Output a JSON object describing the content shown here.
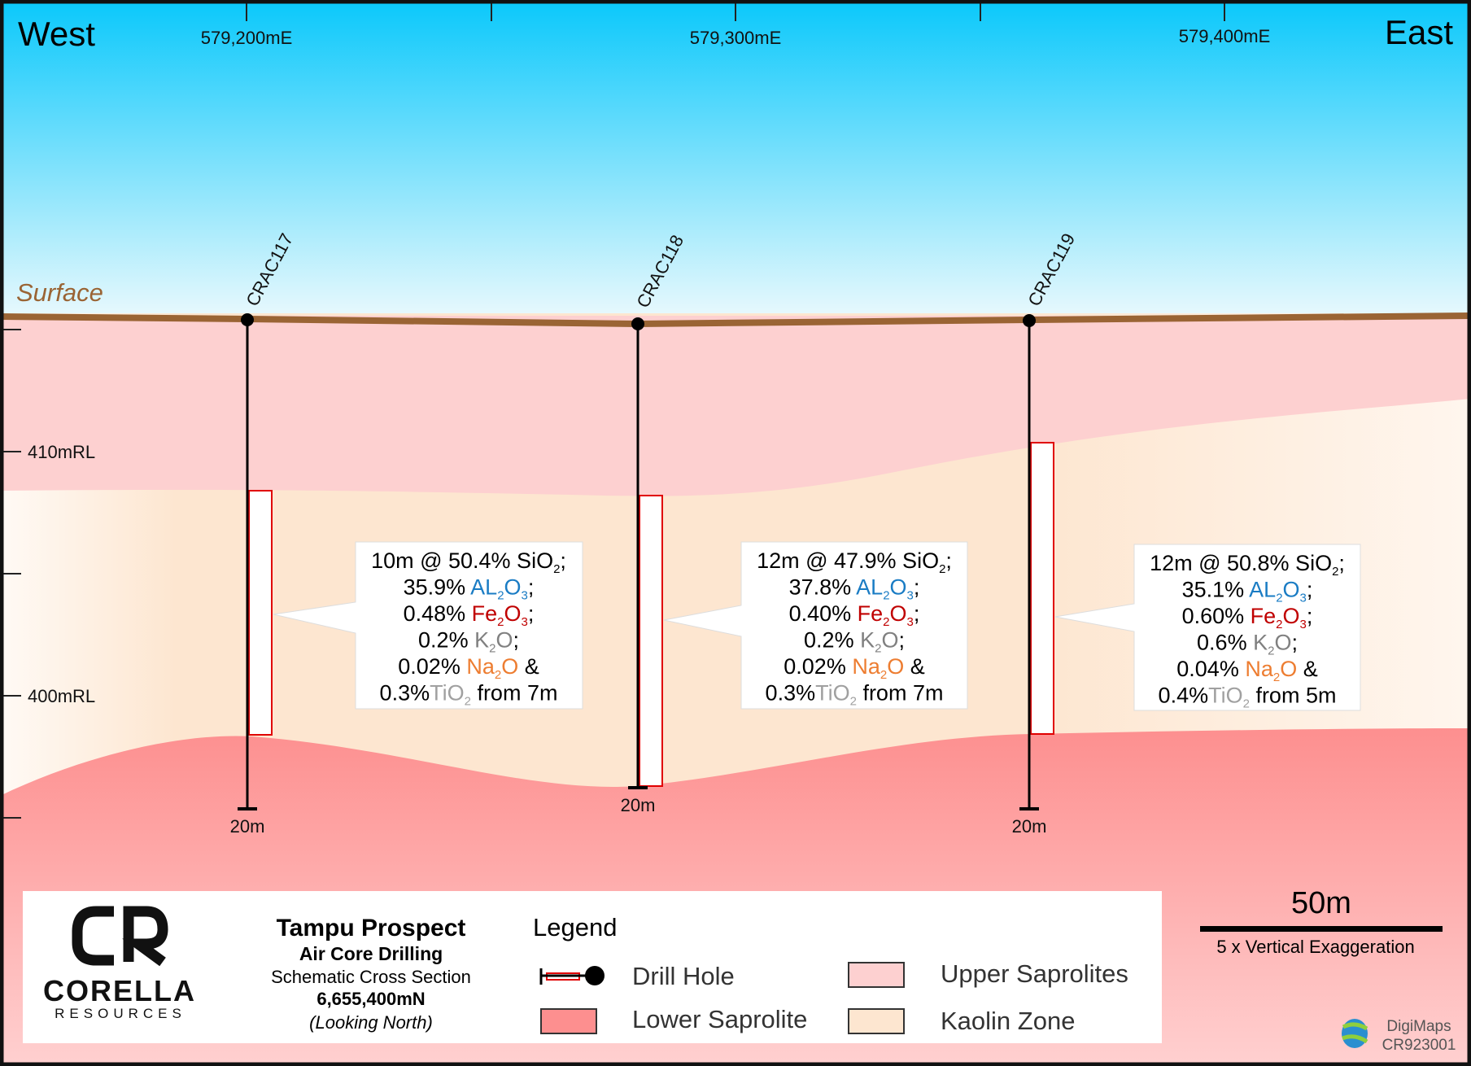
{
  "header": {
    "west": "West",
    "east": "East"
  },
  "eastings": [
    "579,200mE",
    "579,300mE",
    "579,400mE"
  ],
  "rl_labels": [
    "410mRL",
    "400mRL"
  ],
  "surface_label": "Surface",
  "holes": [
    {
      "name": "CRAC117",
      "depth": "20m"
    },
    {
      "name": "CRAC118",
      "depth": "20m"
    },
    {
      "name": "CRAC119",
      "depth": "20m"
    }
  ],
  "callouts": [
    {
      "lines": [
        [
          {
            "t": "10m @ 50.4% SiO"
          },
          {
            "t": "2",
            "sub": true
          },
          {
            "t": ";"
          }
        ],
        [
          {
            "t": "35.9% "
          },
          {
            "t": "AL",
            "c": "#1a7cc4"
          },
          {
            "t": "2",
            "sub": true,
            "c": "#1a7cc4"
          },
          {
            "t": "O",
            "c": "#1a7cc4"
          },
          {
            "t": "3",
            "sub": true,
            "c": "#1a7cc4"
          },
          {
            "t": ";"
          }
        ],
        [
          {
            "t": "0.48% "
          },
          {
            "t": "Fe",
            "c": "#c00000"
          },
          {
            "t": "2",
            "sub": true,
            "c": "#c00000"
          },
          {
            "t": "O",
            "c": "#c00000"
          },
          {
            "t": "3",
            "sub": true,
            "c": "#c00000"
          },
          {
            "t": ";"
          }
        ],
        [
          {
            "t": "0.2% "
          },
          {
            "t": "K",
            "c": "#808080"
          },
          {
            "t": "2",
            "sub": true,
            "c": "#808080"
          },
          {
            "t": "O",
            "c": "#808080"
          },
          {
            "t": ";"
          }
        ],
        [
          {
            "t": "0.02% "
          },
          {
            "t": "Na",
            "c": "#ed7d31"
          },
          {
            "t": "2",
            "sub": true,
            "c": "#ed7d31"
          },
          {
            "t": "O",
            "c": "#ed7d31"
          },
          {
            "t": " &"
          }
        ],
        [
          {
            "t": "0.3%"
          },
          {
            "t": "TiO",
            "c": "#a0a0a0"
          },
          {
            "t": "2",
            "sub": true,
            "c": "#a0a0a0"
          },
          {
            "t": " from 7m"
          }
        ]
      ]
    },
    {
      "lines": [
        [
          {
            "t": "12m @ 47.9% SiO"
          },
          {
            "t": "2",
            "sub": true
          },
          {
            "t": ";"
          }
        ],
        [
          {
            "t": "37.8% "
          },
          {
            "t": "AL",
            "c": "#1a7cc4"
          },
          {
            "t": "2",
            "sub": true,
            "c": "#1a7cc4"
          },
          {
            "t": "O",
            "c": "#1a7cc4"
          },
          {
            "t": "3",
            "sub": true,
            "c": "#1a7cc4"
          },
          {
            "t": ";"
          }
        ],
        [
          {
            "t": "0.40% "
          },
          {
            "t": "Fe",
            "c": "#c00000"
          },
          {
            "t": "2",
            "sub": true,
            "c": "#c00000"
          },
          {
            "t": "O",
            "c": "#c00000"
          },
          {
            "t": "3",
            "sub": true,
            "c": "#c00000"
          },
          {
            "t": ";"
          }
        ],
        [
          {
            "t": "0.2% "
          },
          {
            "t": "K",
            "c": "#808080"
          },
          {
            "t": "2",
            "sub": true,
            "c": "#808080"
          },
          {
            "t": "O",
            "c": "#808080"
          },
          {
            "t": ";"
          }
        ],
        [
          {
            "t": "0.02% "
          },
          {
            "t": "Na",
            "c": "#ed7d31"
          },
          {
            "t": "2",
            "sub": true,
            "c": "#ed7d31"
          },
          {
            "t": "O",
            "c": "#ed7d31"
          },
          {
            "t": " &"
          }
        ],
        [
          {
            "t": "0.3%"
          },
          {
            "t": "TiO",
            "c": "#a0a0a0"
          },
          {
            "t": "2",
            "sub": true,
            "c": "#a0a0a0"
          },
          {
            "t": " from 7m"
          }
        ]
      ]
    },
    {
      "lines": [
        [
          {
            "t": "12m @ 50.8% SiO"
          },
          {
            "t": "2",
            "sub": true
          },
          {
            "t": ";"
          }
        ],
        [
          {
            "t": "35.1% "
          },
          {
            "t": "AL",
            "c": "#1a7cc4"
          },
          {
            "t": "2",
            "sub": true,
            "c": "#1a7cc4"
          },
          {
            "t": "O",
            "c": "#1a7cc4"
          },
          {
            "t": "3",
            "sub": true,
            "c": "#1a7cc4"
          },
          {
            "t": ";"
          }
        ],
        [
          {
            "t": "0.60% "
          },
          {
            "t": "Fe",
            "c": "#c00000"
          },
          {
            "t": "2",
            "sub": true,
            "c": "#c00000"
          },
          {
            "t": "O",
            "c": "#c00000"
          },
          {
            "t": "3",
            "sub": true,
            "c": "#c00000"
          },
          {
            "t": ";"
          }
        ],
        [
          {
            "t": "0.6% "
          },
          {
            "t": "K",
            "c": "#808080"
          },
          {
            "t": "2",
            "sub": true,
            "c": "#808080"
          },
          {
            "t": "O",
            "c": "#808080"
          },
          {
            "t": ";"
          }
        ],
        [
          {
            "t": "0.04% "
          },
          {
            "t": "Na",
            "c": "#ed7d31"
          },
          {
            "t": "2",
            "sub": true,
            "c": "#ed7d31"
          },
          {
            "t": "O",
            "c": "#ed7d31"
          },
          {
            "t": " &"
          }
        ],
        [
          {
            "t": "0.4%"
          },
          {
            "t": "TiO",
            "c": "#a0a0a0"
          },
          {
            "t": "2",
            "sub": true,
            "c": "#a0a0a0"
          },
          {
            "t": " from 5m"
          }
        ]
      ]
    }
  ],
  "title_block": {
    "logo_mark": "CR",
    "logo_name": "CORELLA",
    "logo_sub": "RESOURCES",
    "title": "Tampu Prospect",
    "subtitle": "Air Core Drilling",
    "line3": "Schematic Cross Section",
    "northing": "6,655,400mN",
    "looking": "(Looking North)"
  },
  "legend": {
    "heading": "Legend",
    "items": [
      {
        "label": "Drill Hole"
      },
      {
        "label": "Upper Saprolites",
        "color": "#fdd0d0"
      },
      {
        "label": "Lower Saprolite",
        "color": "#fd8f8f"
      },
      {
        "label": "Kaolin Zone",
        "color": "#fde6d0"
      }
    ]
  },
  "scale": {
    "label": "50m",
    "note": "5 x Vertical Exaggeration"
  },
  "credit": {
    "name": "DigiMaps",
    "code": "CR923001"
  },
  "colors": {
    "surface": "#9a6434",
    "interval": "#e00000"
  }
}
